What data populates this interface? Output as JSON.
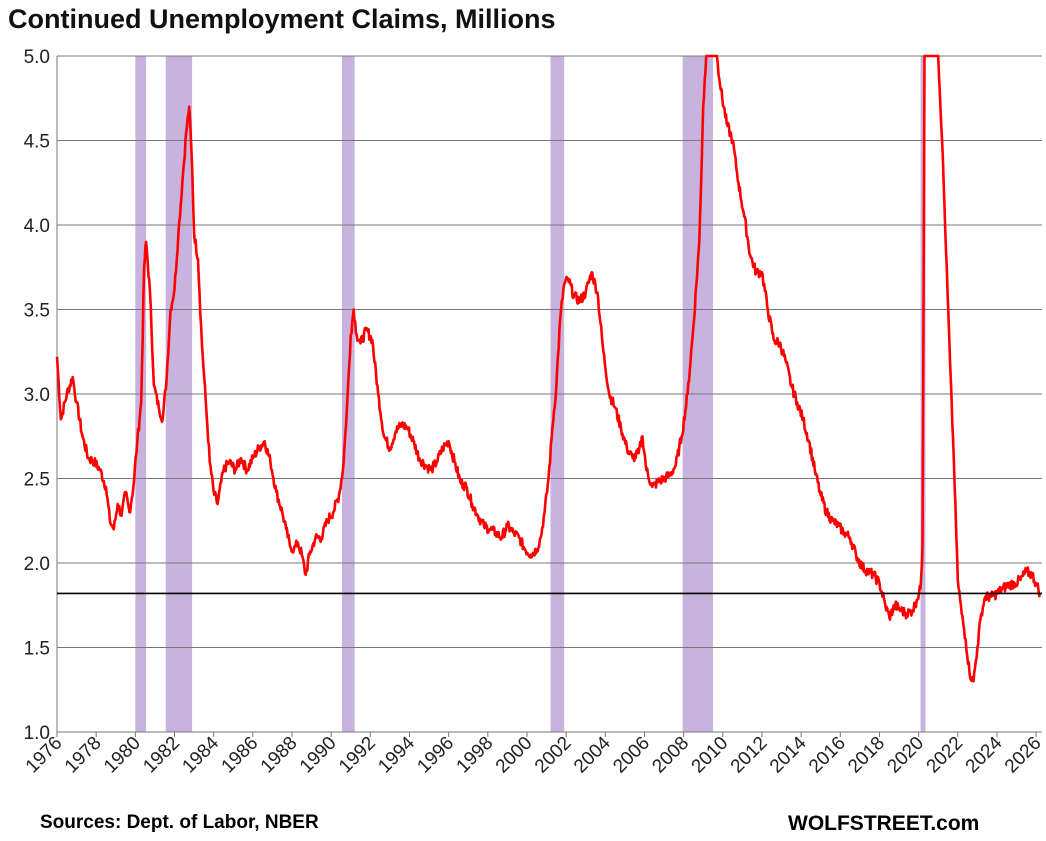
{
  "chart_data": {
    "type": "line",
    "title": "Continued Unemployment Claims, Millions",
    "ylim": [
      1.0,
      5.0
    ],
    "yticks": [
      "1.0",
      "1.5",
      "2.0",
      "2.5",
      "3.0",
      "3.5",
      "4.0",
      "4.5",
      "5.0"
    ],
    "xlim": [
      1976,
      2026.3
    ],
    "xticks": [
      "1976",
      "1978",
      "1980",
      "1982",
      "1984",
      "1986",
      "1988",
      "1990",
      "1992",
      "1994",
      "1996",
      "1998",
      "2000",
      "2002",
      "2004",
      "2006",
      "2008",
      "2010",
      "2012",
      "2014",
      "2016",
      "2018",
      "2020",
      "2022",
      "2024",
      "2026"
    ],
    "grid": true,
    "reference_line": 1.82,
    "recessions": [
      [
        1980.0,
        1980.55
      ],
      [
        1981.55,
        1982.9
      ],
      [
        1990.55,
        1991.2
      ],
      [
        2001.2,
        2001.9
      ],
      [
        2007.95,
        2009.5
      ],
      [
        2020.1,
        2020.35
      ]
    ],
    "series": [
      {
        "color": "#ff0000",
        "points": [
          [
            1976.0,
            3.22
          ],
          [
            1976.2,
            2.85
          ],
          [
            1976.5,
            3.0
          ],
          [
            1976.8,
            3.1
          ],
          [
            1977.0,
            2.95
          ],
          [
            1977.3,
            2.75
          ],
          [
            1977.6,
            2.62
          ],
          [
            1977.9,
            2.6
          ],
          [
            1978.2,
            2.55
          ],
          [
            1978.5,
            2.45
          ],
          [
            1978.7,
            2.25
          ],
          [
            1978.9,
            2.2
          ],
          [
            1979.1,
            2.35
          ],
          [
            1979.3,
            2.28
          ],
          [
            1979.5,
            2.42
          ],
          [
            1979.7,
            2.3
          ],
          [
            1979.9,
            2.45
          ],
          [
            1980.1,
            2.72
          ],
          [
            1980.3,
            2.95
          ],
          [
            1980.45,
            3.75
          ],
          [
            1980.55,
            3.9
          ],
          [
            1980.75,
            3.6
          ],
          [
            1980.95,
            3.05
          ],
          [
            1981.2,
            2.92
          ],
          [
            1981.4,
            2.85
          ],
          [
            1981.6,
            3.1
          ],
          [
            1981.8,
            3.5
          ],
          [
            1982.0,
            3.62
          ],
          [
            1982.2,
            3.95
          ],
          [
            1982.4,
            4.25
          ],
          [
            1982.6,
            4.55
          ],
          [
            1982.75,
            4.7
          ],
          [
            1982.9,
            4.35
          ],
          [
            1983.0,
            3.95
          ],
          [
            1983.2,
            3.8
          ],
          [
            1983.4,
            3.3
          ],
          [
            1983.6,
            2.95
          ],
          [
            1983.8,
            2.6
          ],
          [
            1984.0,
            2.42
          ],
          [
            1984.2,
            2.35
          ],
          [
            1984.5,
            2.55
          ],
          [
            1984.8,
            2.6
          ],
          [
            1985.1,
            2.55
          ],
          [
            1985.4,
            2.62
          ],
          [
            1985.7,
            2.55
          ],
          [
            1986.0,
            2.62
          ],
          [
            1986.3,
            2.68
          ],
          [
            1986.6,
            2.72
          ],
          [
            1986.9,
            2.6
          ],
          [
            1987.2,
            2.42
          ],
          [
            1987.5,
            2.3
          ],
          [
            1987.7,
            2.2
          ],
          [
            1987.9,
            2.1
          ],
          [
            1988.1,
            2.08
          ],
          [
            1988.3,
            2.12
          ],
          [
            1988.5,
            2.05
          ],
          [
            1988.7,
            1.93
          ],
          [
            1988.9,
            2.05
          ],
          [
            1989.2,
            2.15
          ],
          [
            1989.5,
            2.15
          ],
          [
            1989.8,
            2.25
          ],
          [
            1990.1,
            2.3
          ],
          [
            1990.4,
            2.4
          ],
          [
            1990.6,
            2.55
          ],
          [
            1990.8,
            2.9
          ],
          [
            1991.0,
            3.35
          ],
          [
            1991.15,
            3.5
          ],
          [
            1991.3,
            3.35
          ],
          [
            1991.5,
            3.3
          ],
          [
            1991.8,
            3.38
          ],
          [
            1992.1,
            3.32
          ],
          [
            1992.4,
            3.0
          ],
          [
            1992.7,
            2.75
          ],
          [
            1993.0,
            2.68
          ],
          [
            1993.3,
            2.78
          ],
          [
            1993.6,
            2.82
          ],
          [
            1993.9,
            2.8
          ],
          [
            1994.2,
            2.72
          ],
          [
            1994.5,
            2.62
          ],
          [
            1994.8,
            2.58
          ],
          [
            1995.1,
            2.55
          ],
          [
            1995.4,
            2.6
          ],
          [
            1995.7,
            2.68
          ],
          [
            1996.0,
            2.72
          ],
          [
            1996.3,
            2.6
          ],
          [
            1996.6,
            2.48
          ],
          [
            1996.9,
            2.45
          ],
          [
            1997.2,
            2.35
          ],
          [
            1997.5,
            2.28
          ],
          [
            1997.8,
            2.22
          ],
          [
            1998.1,
            2.2
          ],
          [
            1998.4,
            2.18
          ],
          [
            1998.7,
            2.15
          ],
          [
            1999.0,
            2.22
          ],
          [
            1999.3,
            2.18
          ],
          [
            1999.6,
            2.15
          ],
          [
            1999.9,
            2.08
          ],
          [
            2000.2,
            2.05
          ],
          [
            2000.5,
            2.08
          ],
          [
            2000.7,
            2.15
          ],
          [
            2000.9,
            2.3
          ],
          [
            2001.1,
            2.5
          ],
          [
            2001.3,
            2.8
          ],
          [
            2001.5,
            3.05
          ],
          [
            2001.7,
            3.45
          ],
          [
            2001.9,
            3.65
          ],
          [
            2002.1,
            3.68
          ],
          [
            2002.4,
            3.58
          ],
          [
            2002.7,
            3.55
          ],
          [
            2003.0,
            3.6
          ],
          [
            2003.3,
            3.72
          ],
          [
            2003.6,
            3.6
          ],
          [
            2003.9,
            3.25
          ],
          [
            2004.2,
            3.0
          ],
          [
            2004.5,
            2.92
          ],
          [
            2004.8,
            2.8
          ],
          [
            2005.1,
            2.68
          ],
          [
            2005.4,
            2.62
          ],
          [
            2005.7,
            2.65
          ],
          [
            2005.9,
            2.75
          ],
          [
            2006.1,
            2.55
          ],
          [
            2006.4,
            2.45
          ],
          [
            2006.7,
            2.48
          ],
          [
            2007.0,
            2.5
          ],
          [
            2007.3,
            2.52
          ],
          [
            2007.6,
            2.58
          ],
          [
            2007.9,
            2.75
          ],
          [
            2008.2,
            3.0
          ],
          [
            2008.5,
            3.4
          ],
          [
            2008.8,
            3.9
          ],
          [
            2009.0,
            4.7
          ],
          [
            2009.15,
            5.0
          ],
          [
            2009.7,
            5.0
          ],
          [
            2009.9,
            4.8
          ],
          [
            2010.2,
            4.6
          ],
          [
            2010.5,
            4.5
          ],
          [
            2010.8,
            4.25
          ],
          [
            2011.1,
            4.05
          ],
          [
            2011.4,
            3.82
          ],
          [
            2011.7,
            3.72
          ],
          [
            2012.0,
            3.72
          ],
          [
            2012.3,
            3.5
          ],
          [
            2012.6,
            3.32
          ],
          [
            2012.9,
            3.3
          ],
          [
            2013.2,
            3.2
          ],
          [
            2013.5,
            3.05
          ],
          [
            2013.8,
            2.95
          ],
          [
            2014.1,
            2.85
          ],
          [
            2014.4,
            2.72
          ],
          [
            2014.7,
            2.55
          ],
          [
            2015.0,
            2.4
          ],
          [
            2015.3,
            2.3
          ],
          [
            2015.6,
            2.25
          ],
          [
            2015.9,
            2.22
          ],
          [
            2016.2,
            2.18
          ],
          [
            2016.5,
            2.15
          ],
          [
            2016.8,
            2.05
          ],
          [
            2017.1,
            1.98
          ],
          [
            2017.4,
            1.95
          ],
          [
            2017.7,
            1.93
          ],
          [
            2018.0,
            1.88
          ],
          [
            2018.3,
            1.75
          ],
          [
            2018.5,
            1.68
          ],
          [
            2018.8,
            1.75
          ],
          [
            2019.1,
            1.72
          ],
          [
            2019.4,
            1.7
          ],
          [
            2019.7,
            1.72
          ],
          [
            2019.9,
            1.78
          ],
          [
            2020.1,
            1.85
          ],
          [
            2020.2,
            2.1
          ],
          [
            2020.3,
            5.0
          ],
          [
            2021.0,
            5.0
          ],
          [
            2021.2,
            4.5
          ],
          [
            2021.4,
            3.85
          ],
          [
            2021.6,
            3.2
          ],
          [
            2021.8,
            2.6
          ],
          [
            2022.0,
            1.9
          ],
          [
            2022.2,
            1.7
          ],
          [
            2022.4,
            1.55
          ],
          [
            2022.6,
            1.35
          ],
          [
            2022.8,
            1.3
          ],
          [
            2023.0,
            1.5
          ],
          [
            2023.2,
            1.7
          ],
          [
            2023.4,
            1.8
          ],
          [
            2023.7,
            1.8
          ],
          [
            2024.0,
            1.82
          ],
          [
            2024.3,
            1.85
          ],
          [
            2024.6,
            1.87
          ],
          [
            2024.9,
            1.88
          ],
          [
            2025.2,
            1.9
          ],
          [
            2025.5,
            1.95
          ],
          [
            2025.8,
            1.93
          ],
          [
            2026.0,
            1.88
          ],
          [
            2026.2,
            1.82
          ]
        ]
      }
    ]
  },
  "footer": {
    "source": "Sources: Dept. of Labor, NBER",
    "brand": "WOLFSTREET.com"
  }
}
